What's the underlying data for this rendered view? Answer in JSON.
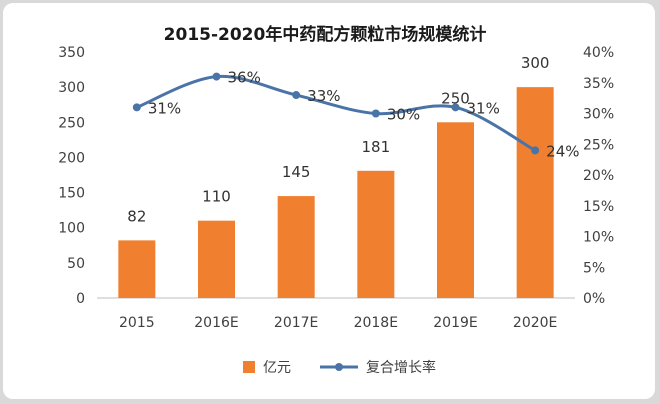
{
  "chart_data": {
    "type": "bar",
    "title": "2015-2020年中药配方颗粒市场规模统计",
    "categories": [
      "2015",
      "2016E",
      "2017E",
      "2018E",
      "2019E",
      "2020E"
    ],
    "series": [
      {
        "name": "亿元",
        "type": "bar",
        "axis": "left",
        "values": [
          82,
          110,
          145,
          181,
          250,
          300
        ],
        "labels": [
          "82",
          "110",
          "145",
          "181",
          "250",
          "300"
        ],
        "color": "#f07f2f"
      },
      {
        "name": "复合增长率",
        "type": "line",
        "axis": "right",
        "values": [
          31,
          36,
          33,
          30,
          31,
          24
        ],
        "labels": [
          "31%",
          "36%",
          "33%",
          "30%",
          "31%",
          "24%"
        ],
        "color": "#4a74a8"
      }
    ],
    "y_left": {
      "ylim": [
        0,
        350
      ],
      "ticks": [
        "0",
        "50",
        "100",
        "150",
        "200",
        "250",
        "300",
        "350"
      ]
    },
    "y_right": {
      "ylim": [
        0,
        40
      ],
      "ticks": [
        "0%",
        "5%",
        "10%",
        "15%",
        "20%",
        "25%",
        "30%",
        "35%",
        "40%"
      ]
    },
    "grid": false,
    "legend": "bottom"
  }
}
